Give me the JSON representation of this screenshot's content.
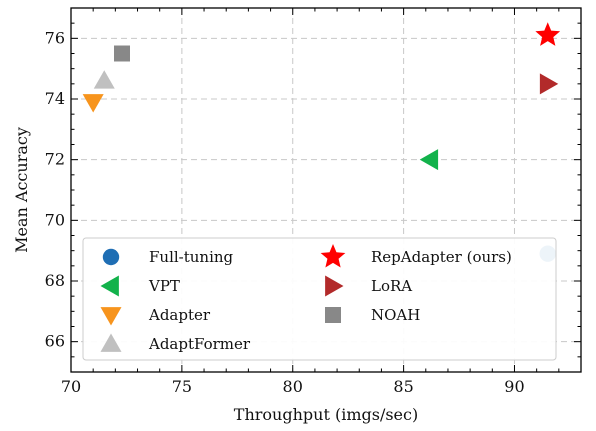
{
  "chart_data": {
    "type": "scatter",
    "title": "",
    "xlabel": "Throughput (imgs/sec)",
    "ylabel": "Mean Accuracy",
    "xlim": [
      70,
      93
    ],
    "ylim": [
      65,
      77
    ],
    "xticks": [
      70,
      75,
      80,
      85,
      90
    ],
    "yticks": [
      66,
      68,
      70,
      72,
      74,
      76
    ],
    "grid": true,
    "legend_position": "lower-center",
    "series": [
      {
        "name": "Full-tuning",
        "marker": "circle",
        "color": "#1f6eb4",
        "points": [
          [
            91.5,
            68.9
          ]
        ]
      },
      {
        "name": "VPT",
        "marker": "triangle-left",
        "color": "#12b24b",
        "points": [
          [
            86.2,
            72.0
          ]
        ]
      },
      {
        "name": "Adapter",
        "marker": "triangle-down",
        "color": "#f7941d",
        "points": [
          [
            71.0,
            73.9
          ]
        ]
      },
      {
        "name": "AdaptFormer",
        "marker": "triangle-up",
        "color": "#c0c0c0",
        "points": [
          [
            71.5,
            74.6
          ]
        ]
      },
      {
        "name": "RepAdapter (ours)",
        "marker": "star",
        "color": "#ff0000",
        "points": [
          [
            91.5,
            76.1
          ]
        ]
      },
      {
        "name": "LoRA",
        "marker": "triangle-right",
        "color": "#b22a2a",
        "points": [
          [
            91.5,
            74.5
          ]
        ]
      },
      {
        "name": "NOAH",
        "marker": "square",
        "color": "#888888",
        "points": [
          [
            72.3,
            75.5
          ]
        ]
      }
    ]
  }
}
